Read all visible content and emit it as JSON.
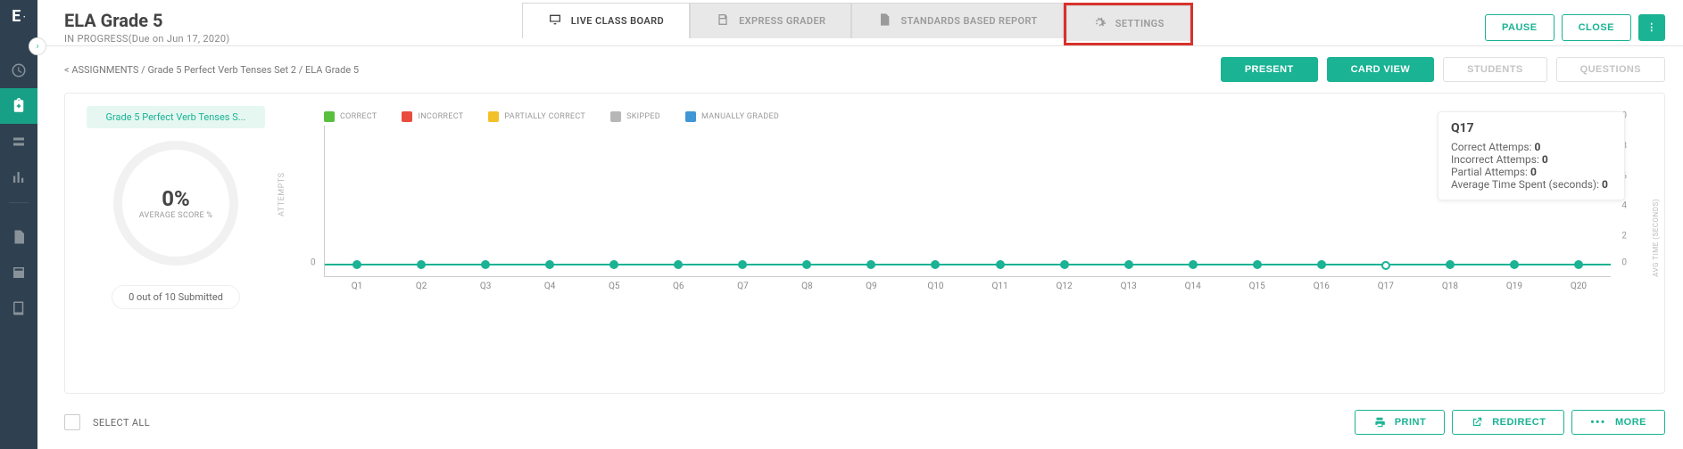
{
  "brand": "E",
  "header": {
    "title": "ELA Grade 5",
    "subtitle": "IN PROGRESS(Due on Jun 17, 2020)",
    "tabs": [
      {
        "label": "LIVE CLASS BOARD",
        "icon": "monitor",
        "active": true
      },
      {
        "label": "EXPRESS GRADER",
        "icon": "save",
        "active": false
      },
      {
        "label": "STANDARDS BASED REPORT",
        "icon": "doc",
        "active": false
      },
      {
        "label": "SETTINGS",
        "icon": "gear",
        "active": false,
        "highlight": true
      }
    ],
    "actions": {
      "pause": "PAUSE",
      "close": "CLOSE"
    }
  },
  "breadcrumb": "<  ASSIGNMENTS / Grade 5 Perfect Verb Tenses Set 2 / ELA Grade 5",
  "viewButtons": {
    "present": "PRESENT",
    "cardView": "CARD VIEW",
    "students": "STUDENTS",
    "questions": "QUESTIONS"
  },
  "leftPanel": {
    "pill": "Grade 5 Perfect Verb Tenses S...",
    "scoreValue": "0%",
    "scoreLabel": "AVERAGE SCORE %",
    "submitted": "0 out of 10 Submitted"
  },
  "legend": [
    {
      "label": "CORRECT",
      "color": "#5bbf3e"
    },
    {
      "label": "INCORRECT",
      "color": "#e84c3d"
    },
    {
      "label": "PARTIALLY CORRECT",
      "color": "#f2c029"
    },
    {
      "label": "SKIPPED",
      "color": "#b7b7b7"
    },
    {
      "label": "MANUALLY GRADED",
      "color": "#3f97d6"
    }
  ],
  "chart": {
    "yLabel": "ATTEMPTS",
    "y2Label": "AVG TIME (SECONDS)",
    "yTicks": [
      0
    ],
    "y2Ticks": [
      0,
      2,
      4,
      6,
      8,
      10
    ],
    "y2Max": 10,
    "categories": [
      "Q1",
      "Q2",
      "Q3",
      "Q4",
      "Q5",
      "Q6",
      "Q7",
      "Q8",
      "Q9",
      "Q10",
      "Q11",
      "Q12",
      "Q13",
      "Q14",
      "Q15",
      "Q16",
      "Q17",
      "Q18",
      "Q19",
      "Q20"
    ],
    "highlightIndex": 16,
    "series_color": "#1ab394"
  },
  "tooltip": {
    "title": "Q17",
    "rows": [
      {
        "label": "Correct Attemps: ",
        "value": "0"
      },
      {
        "label": "Incorrect Attemps: ",
        "value": "0"
      },
      {
        "label": "Partial Attemps: ",
        "value": "0"
      },
      {
        "label": "Average Time Spent (seconds): ",
        "value": "0"
      }
    ]
  },
  "footer": {
    "selectAll": "SELECT ALL",
    "print": "PRINT",
    "redirect": "REDIRECT",
    "more": "MORE"
  },
  "colors": {
    "accent": "#1ab394",
    "sidebar": "#2f4151"
  }
}
